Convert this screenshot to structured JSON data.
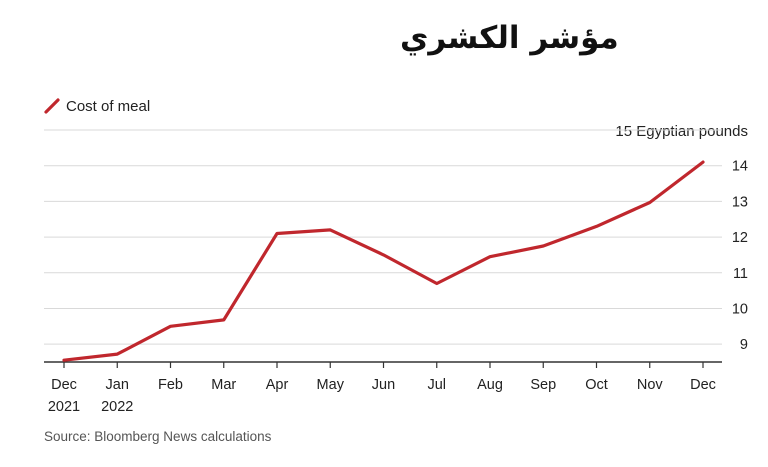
{
  "chart_data": {
    "type": "line",
    "title": "مؤشر الكشري",
    "unit_label": "15 Egyptian pounds",
    "source": "Source: Bloomberg News calculations",
    "legend_position": "top-left",
    "grid": true,
    "ylim": [
      8.5,
      15
    ],
    "y_ticks": [
      9,
      10,
      11,
      12,
      13,
      14
    ],
    "categories": [
      [
        "Dec",
        "2021"
      ],
      [
        "Jan",
        "2022"
      ],
      [
        "Feb",
        ""
      ],
      [
        "Mar",
        ""
      ],
      [
        "Apr",
        ""
      ],
      [
        "May",
        ""
      ],
      [
        "Jun",
        ""
      ],
      [
        "Jul",
        ""
      ],
      [
        "Aug",
        ""
      ],
      [
        "Sep",
        ""
      ],
      [
        "Oct",
        ""
      ],
      [
        "Nov",
        ""
      ],
      [
        "Dec",
        ""
      ]
    ],
    "series": [
      {
        "name": "Cost of meal",
        "color": "#c0272d",
        "values": [
          8.55,
          8.72,
          9.5,
          9.68,
          12.1,
          12.2,
          11.5,
          10.7,
          11.45,
          11.75,
          12.3,
          12.97,
          14.1
        ]
      }
    ]
  }
}
